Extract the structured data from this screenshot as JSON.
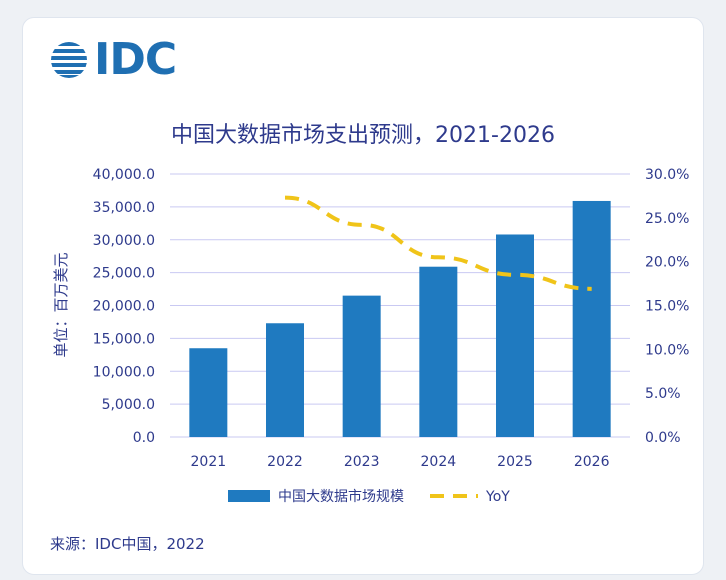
{
  "logo": {
    "text": "IDC"
  },
  "source": "来源：IDC中国，2022",
  "colors": {
    "bar": "#1f7ac0",
    "line": "#f0c419",
    "text": "#2e3a8c",
    "grid": "#c9c9f2"
  },
  "chart_data": {
    "type": "bar",
    "title": "中国大数据市场支出预测，2021-2026",
    "ylabel": "单位：百万美元",
    "categories": [
      "2021",
      "2022",
      "2023",
      "2024",
      "2025",
      "2026"
    ],
    "ylim": [
      0,
      40000
    ],
    "y2lim": [
      0,
      30
    ],
    "y_ticks": [
      "0.0",
      "5,000.0",
      "10,000.0",
      "15,000.0",
      "20,000.0",
      "25,000.0",
      "30,000.0",
      "35,000.0",
      "40,000.0"
    ],
    "y2_ticks": [
      "0.0%",
      "5.0%",
      "10.0%",
      "15.0%",
      "20.0%",
      "25.0%",
      "30.0%"
    ],
    "series": [
      {
        "name": "中国大数据市场规模",
        "type": "bar",
        "axis": "left",
        "values": [
          13500,
          17300,
          21500,
          25900,
          30800,
          35900
        ]
      },
      {
        "name": "YoY",
        "type": "line",
        "axis": "right",
        "style": "dashed",
        "values": [
          null,
          27.3,
          24.2,
          20.5,
          18.5,
          16.9
        ]
      }
    ],
    "grid": true,
    "legend": "bottom"
  }
}
